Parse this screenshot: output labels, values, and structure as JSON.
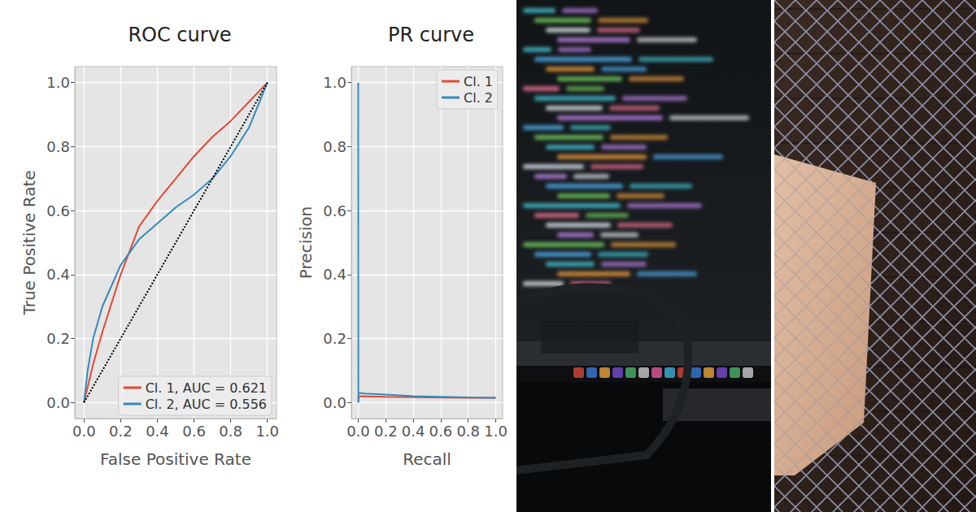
{
  "chart_data": [
    {
      "type": "line",
      "title": "ROC curve",
      "x_label": "False Positive Rate",
      "y_label": "True Positive Rate",
      "xlim": [
        -0.05,
        1.05
      ],
      "ylim": [
        -0.05,
        1.05
      ],
      "xticks": [
        {
          "value": 0,
          "label": "0.0"
        },
        {
          "value": 0.2,
          "label": "0.2"
        },
        {
          "value": 0.4,
          "label": "0.4"
        },
        {
          "value": 0.6,
          "label": "0.6"
        },
        {
          "value": 0.8,
          "label": "0.8"
        },
        {
          "value": 1,
          "label": "1.0"
        }
      ],
      "yticks": [
        {
          "value": 0,
          "label": "0.0"
        },
        {
          "value": 0.2,
          "label": "0.2"
        },
        {
          "value": 0.4,
          "label": "0.4"
        },
        {
          "value": 0.6,
          "label": "0.6"
        },
        {
          "value": 0.8,
          "label": "0.8"
        },
        {
          "value": 1,
          "label": "1.0"
        }
      ],
      "grid": true,
      "legend": "lower right",
      "series": [
        {
          "name": "Cl. 1, AUC = 0.621",
          "color": "#E24A33",
          "line_style": "solid",
          "x": [
            0,
            0.05,
            0.1,
            0.2,
            0.3,
            0.4,
            0.5,
            0.6,
            0.7,
            0.8,
            0.9,
            1
          ],
          "values": [
            0,
            0.12,
            0.22,
            0.4,
            0.55,
            0.63,
            0.7,
            0.77,
            0.83,
            0.88,
            0.94,
            1
          ]
        },
        {
          "name": "Cl. 2, AUC = 0.556",
          "color": "#348ABD",
          "line_style": "solid",
          "x": [
            0,
            0.02,
            0.05,
            0.1,
            0.2,
            0.3,
            0.4,
            0.5,
            0.6,
            0.7,
            0.8,
            0.9,
            1
          ],
          "values": [
            0,
            0.1,
            0.2,
            0.3,
            0.43,
            0.51,
            0.56,
            0.61,
            0.65,
            0.7,
            0.77,
            0.86,
            1
          ]
        },
        {
          "color": "#000000",
          "line_style": "dotted",
          "x": [
            0,
            1
          ],
          "values": [
            0,
            1
          ]
        }
      ]
    },
    {
      "type": "line",
      "title": "PR curve",
      "x_label": "Recall",
      "y_label": "Precision",
      "xlim": [
        -0.05,
        1.05
      ],
      "ylim": [
        -0.05,
        1.05
      ],
      "xticks": [
        {
          "value": 0,
          "label": "0.0"
        },
        {
          "value": 0.2,
          "label": "0.2"
        },
        {
          "value": 0.4,
          "label": "0.4"
        },
        {
          "value": 0.6,
          "label": "0.6"
        },
        {
          "value": 0.8,
          "label": "0.8"
        },
        {
          "value": 1,
          "label": "1.0"
        }
      ],
      "yticks": [
        {
          "value": 0,
          "label": "0.0"
        },
        {
          "value": 0.2,
          "label": "0.2"
        },
        {
          "value": 0.4,
          "label": "0.4"
        },
        {
          "value": 0.6,
          "label": "0.6"
        },
        {
          "value": 0.8,
          "label": "0.8"
        },
        {
          "value": 1,
          "label": "1.0"
        }
      ],
      "grid": true,
      "legend": "upper right",
      "series": [
        {
          "name": "Cl. 1",
          "color": "#E24A33",
          "line_style": "solid",
          "x": [
            0,
            0.005,
            0.2,
            0.5,
            0.8,
            1
          ],
          "values": [
            0,
            0.02,
            0.018,
            0.016,
            0.015,
            0.015
          ]
        },
        {
          "name": "Cl. 2",
          "color": "#348ABD",
          "line_style": "solid",
          "x": [
            0,
            0.001,
            0.002,
            0.05,
            0.2,
            0.4,
            0.6,
            0.8,
            1
          ],
          "values": [
            1,
            0,
            0.03,
            0.028,
            0.025,
            0.02,
            0.018,
            0.016,
            0.015
          ]
        }
      ]
    }
  ]
}
